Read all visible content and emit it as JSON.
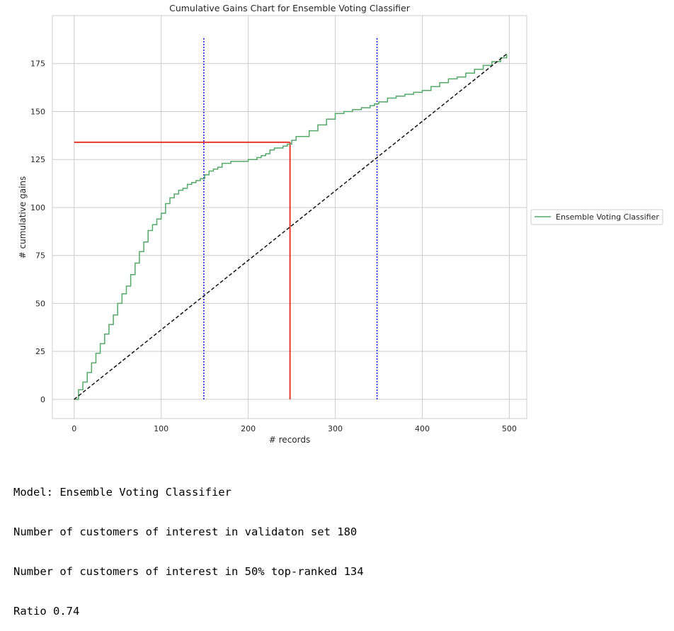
{
  "chart_data": {
    "type": "line",
    "title": "Cumulative Gains Chart for Ensemble Voting Classifier",
    "xlabel": "# records",
    "ylabel": "# cumulative gains",
    "xlim": [
      -25,
      520
    ],
    "ylim": [
      -10,
      200
    ],
    "xticks": [
      0,
      100,
      200,
      300,
      400,
      500
    ],
    "yticks": [
      0,
      25,
      50,
      75,
      100,
      125,
      150,
      175
    ],
    "grid": true,
    "legend_position": "right, outside plot",
    "series": [
      {
        "name": "Ensemble Voting Classifier",
        "style": "solid",
        "color": "#55a868",
        "x": [
          0,
          5,
          10,
          15,
          20,
          25,
          30,
          35,
          40,
          45,
          50,
          55,
          60,
          65,
          70,
          75,
          80,
          85,
          90,
          95,
          100,
          105,
          110,
          115,
          120,
          125,
          130,
          135,
          140,
          145,
          150,
          155,
          160,
          165,
          170,
          175,
          180,
          190,
          200,
          210,
          215,
          220,
          225,
          230,
          235,
          240,
          245,
          250,
          255,
          260,
          270,
          280,
          290,
          300,
          310,
          320,
          330,
          340,
          345,
          350,
          360,
          370,
          380,
          390,
          400,
          410,
          420,
          430,
          440,
          450,
          460,
          470,
          480,
          490,
          497
        ],
        "y": [
          0,
          5,
          9,
          14,
          19,
          24,
          29,
          34,
          39,
          44,
          50,
          55,
          59,
          65,
          71,
          77,
          82,
          88,
          91,
          94,
          97,
          102,
          105,
          107,
          109,
          110,
          112,
          113,
          114,
          115,
          117,
          119,
          120,
          121,
          123,
          123,
          124,
          124,
          125,
          126,
          127,
          128,
          130,
          131,
          131,
          132,
          133,
          135,
          137,
          137,
          140,
          143,
          146,
          149,
          150,
          151,
          152,
          153,
          154,
          155,
          157,
          158,
          159,
          160,
          161,
          163,
          165,
          167,
          168,
          170,
          172,
          174,
          176,
          178,
          180
        ]
      },
      {
        "name": "",
        "style": "dashed",
        "color": "#111111",
        "x": [
          0,
          497
        ],
        "y": [
          0,
          180
        ]
      }
    ],
    "reference_lines": [
      {
        "orientation": "vertical",
        "x": 149,
        "y_range": [
          0,
          189
        ],
        "style": "dotted",
        "color": "#0000ff"
      },
      {
        "orientation": "vertical",
        "x": 348,
        "y_range": [
          0,
          189
        ],
        "style": "dotted",
        "color": "#0000ff"
      },
      {
        "orientation": "vertical",
        "x": 248,
        "y_range": [
          0,
          134
        ],
        "style": "solid",
        "color": "#e8372a"
      },
      {
        "orientation": "horizontal",
        "y": 134,
        "x_range": [
          0,
          248
        ],
        "style": "solid",
        "color": "#e8372a"
      }
    ],
    "legend": [
      "Ensemble Voting Classifier"
    ]
  },
  "output": {
    "lines": [
      "Model: Ensemble Voting Classifier",
      "Number of customers of interest in validaton set 180",
      "Number of customers of interest in 50% top-ranked 134",
      "Ratio 0.74"
    ]
  }
}
